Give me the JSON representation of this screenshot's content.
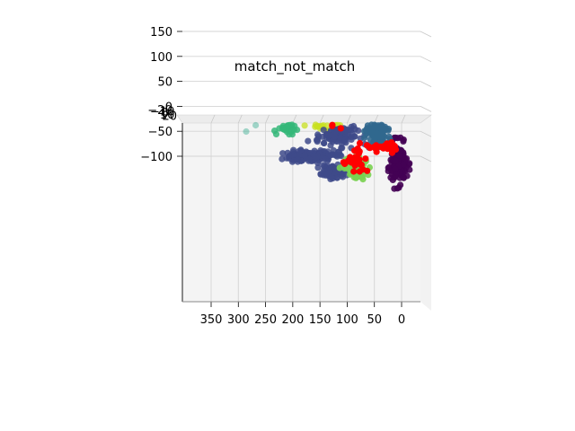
{
  "chart_data": {
    "type": "scatter",
    "title": "match_not_match",
    "view": "3d",
    "xlabel": "",
    "ylabel": "",
    "zlabel": "",
    "x_ticks": [
      350,
      300,
      250,
      200,
      150,
      100,
      50,
      0
    ],
    "y_ticks": [
      -100,
      -50,
      0,
      50,
      100,
      150
    ],
    "z_ticks": [
      -20,
      -10,
      0,
      10,
      20
    ],
    "xlim": [
      390,
      -40
    ],
    "ylim": [
      -175,
      190
    ],
    "grid": true,
    "legend": "none",
    "colors": {
      "teal_sparse": "#21a585",
      "green": "#35b779",
      "lime": "#c8e020",
      "light_green": "#7ad151",
      "yellow": "#fde725",
      "indigo": "#3e4a89",
      "dark_purple": "#440154",
      "blue": "#31688e",
      "teal": "#26828e",
      "red": "#ff0000"
    },
    "clusters": [
      {
        "color_key": "teal_sparse",
        "cx": 293,
        "cy": 60,
        "rx": 48,
        "ry": 85,
        "n": 190,
        "opacity": 0.4
      },
      {
        "color_key": "green",
        "cx": 210,
        "cy": -25,
        "rx": 18,
        "ry": 24,
        "n": 200,
        "opacity": 0.85
      },
      {
        "color_key": "lime",
        "cx": 140,
        "cy": -20,
        "rx": 32,
        "ry": 22,
        "n": 380,
        "opacity": 0.75
      },
      {
        "color_key": "indigo",
        "cx": 165,
        "cy": -100,
        "rx": 48,
        "ry": 12,
        "n": 140,
        "opacity": 0.85
      },
      {
        "color_key": "indigo",
        "cx": 125,
        "cy": -130,
        "rx": 22,
        "ry": 12,
        "n": 90,
        "opacity": 0.85
      },
      {
        "color_key": "indigo",
        "cx": 120,
        "cy": -60,
        "rx": 40,
        "ry": 18,
        "n": 90,
        "opacity": 0.85
      },
      {
        "color_key": "light_green",
        "cx": 85,
        "cy": -120,
        "rx": 22,
        "ry": 20,
        "n": 90,
        "opacity": 0.9
      },
      {
        "color_key": "dark_purple",
        "cx": 5,
        "cy": -115,
        "rx": 15,
        "ry": 40,
        "n": 160,
        "opacity": 0.9
      },
      {
        "color_key": "blue",
        "cx": 45,
        "cy": -45,
        "rx": 18,
        "ry": 35,
        "n": 190,
        "opacity": 0.9
      },
      {
        "color_key": "blue",
        "cx": 80,
        "cy": -15,
        "rx": 14,
        "ry": 10,
        "n": 25,
        "opacity": 0.9
      },
      {
        "color_key": "teal",
        "cx": 30,
        "cy": 85,
        "rx": 22,
        "ry": 30,
        "n": 220,
        "opacity": 0.9
      },
      {
        "color_key": "yellow",
        "cx": 110,
        "cy": 130,
        "rx": 25,
        "ry": 25,
        "n": 70,
        "opacity": 0.95
      },
      {
        "color_key": "red",
        "cx": 85,
        "cy": -110,
        "rx": 25,
        "ry": 25,
        "n": 30,
        "opacity": 1
      },
      {
        "color_key": "red",
        "cx": 35,
        "cy": -80,
        "rx": 35,
        "ry": 12,
        "n": 30,
        "opacity": 1
      },
      {
        "color_key": "red",
        "cx": 155,
        "cy": 75,
        "rx": 28,
        "ry": 12,
        "n": 28,
        "opacity": 1
      },
      {
        "color_key": "red",
        "cx": 110,
        "cy": -30,
        "rx": 22,
        "ry": 18,
        "n": 18,
        "opacity": 1
      },
      {
        "color_key": "red",
        "cx": 75,
        "cy": 115,
        "rx": 8,
        "ry": 8,
        "n": 8,
        "opacity": 1
      }
    ]
  }
}
